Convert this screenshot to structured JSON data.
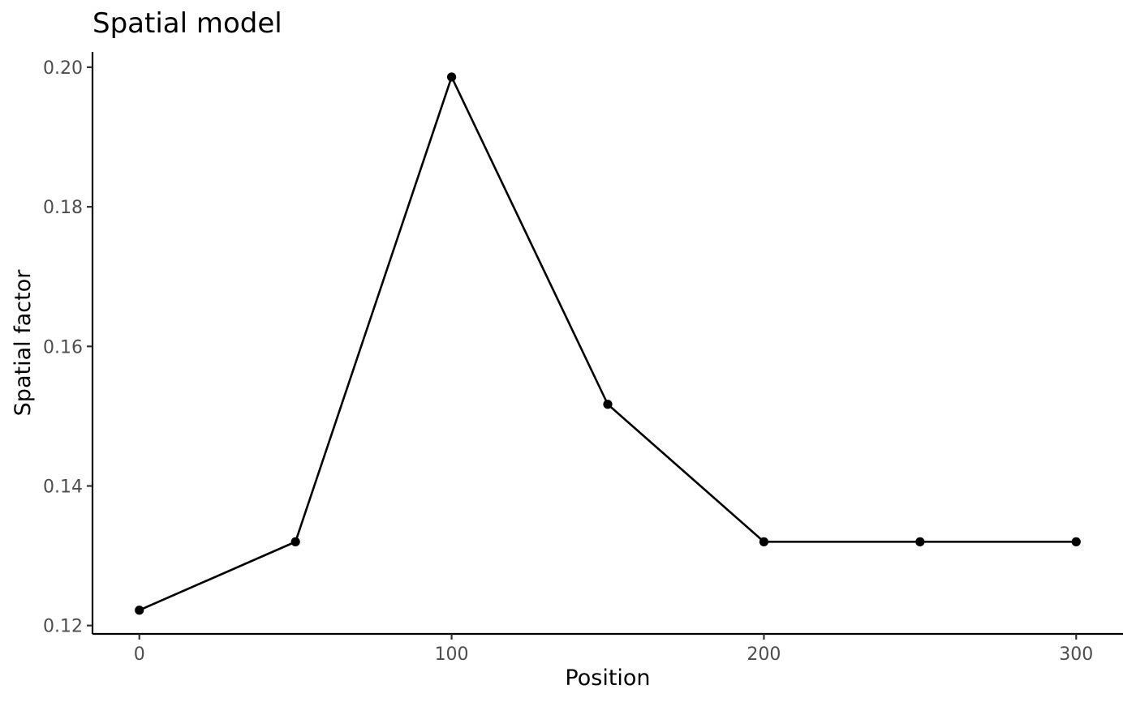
{
  "chart_data": {
    "type": "line",
    "title": "Spatial model",
    "xlabel": "Position",
    "ylabel": "Spatial factor",
    "x": [
      0,
      50,
      100,
      150,
      200,
      250,
      300
    ],
    "series": [
      {
        "values": [
          0.1222,
          0.132,
          0.1986,
          0.1517,
          0.132,
          0.132,
          0.132
        ],
        "color": "#000000",
        "markers": true
      }
    ],
    "xlim": [
      -15,
      315
    ],
    "ylim": [
      0.1188,
      0.2022
    ],
    "xticks": [
      0,
      100,
      200,
      300
    ],
    "yticks": [
      0.12,
      0.14,
      0.16,
      0.18,
      0.2
    ],
    "xtick_labels": [
      "0",
      "100",
      "200",
      "300"
    ],
    "ytick_labels": [
      "0.12",
      "0.14",
      "0.16",
      "0.18",
      "0.20"
    ],
    "grid": false,
    "legend": "none"
  }
}
